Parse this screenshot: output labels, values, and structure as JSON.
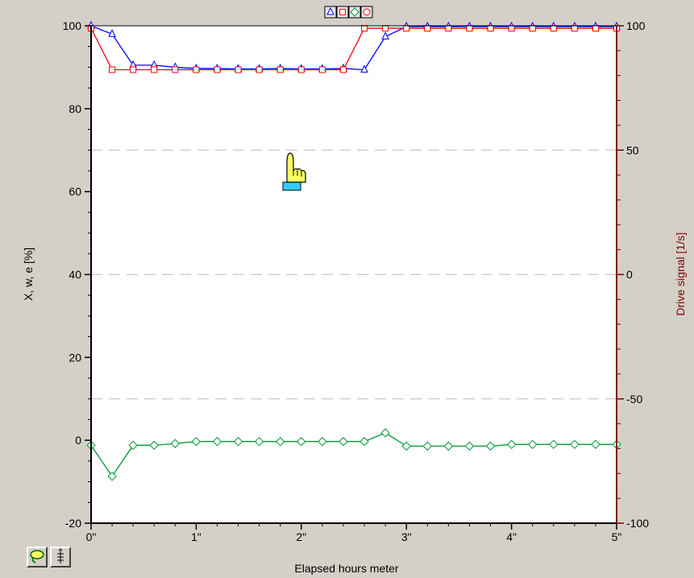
{
  "chart_data": {
    "type": "line",
    "xlabel": "Elapsed hours meter",
    "ylabel": "X, w, e [%]",
    "y2label": "Drive signal [1/s]",
    "xlim": [
      0,
      5
    ],
    "ylim": [
      -20,
      100
    ],
    "y2lim": [
      -100,
      100
    ],
    "x_ticks": [
      0,
      1,
      2,
      3,
      4,
      5
    ],
    "x_tick_labels": [
      "0\"",
      "1\"",
      "2\"",
      "3\"",
      "4\"",
      "5\""
    ],
    "y_ticks": [
      -20,
      0,
      20,
      40,
      60,
      80,
      100
    ],
    "y_tick_labels": [
      "-20",
      "0",
      "20",
      "40",
      "60",
      "80",
      "100"
    ],
    "y2_ticks": [
      -100,
      -50,
      0,
      50,
      100
    ],
    "y2_tick_labels": [
      "-100",
      "-50",
      "0",
      "50",
      "100"
    ],
    "grid": "dashed horizontal at right-axis major ticks",
    "series": [
      {
        "color": "#0000ff",
        "marker": "triangle",
        "axis": "left",
        "x": [
          0,
          0.2,
          0.4,
          0.6,
          0.8,
          1.0,
          1.2,
          1.4,
          1.6,
          1.8,
          2.0,
          2.2,
          2.4,
          2.6,
          2.8,
          3.0,
          3.2,
          3.4,
          3.6,
          3.8,
          4.0,
          4.2,
          4.4,
          4.6,
          4.8,
          5.0
        ],
        "y": [
          100,
          98,
          90.5,
          90.5,
          90,
          89.7,
          89.7,
          89.6,
          89.6,
          89.7,
          89.6,
          89.6,
          89.7,
          89.4,
          97.4,
          99.8,
          99.8,
          99.8,
          99.8,
          99.8,
          99.8,
          99.8,
          99.8,
          99.8,
          99.8,
          99.8
        ]
      },
      {
        "color": "#ff0000",
        "marker": "square",
        "axis": "left",
        "x": [
          0,
          0.2,
          0.4,
          0.6,
          0.8,
          1.0,
          1.2,
          1.4,
          1.6,
          1.8,
          2.0,
          2.2,
          2.4,
          2.6,
          2.8,
          3.0,
          3.2,
          3.4,
          3.6,
          3.8,
          4.0,
          4.2,
          4.4,
          4.6,
          4.8,
          5.0
        ],
        "y": [
          99.4,
          89.4,
          89.4,
          89.4,
          89.4,
          89.4,
          89.4,
          89.4,
          89.4,
          89.4,
          89.4,
          89.4,
          89.4,
          99.4,
          99.4,
          99.4,
          99.4,
          99.4,
          99.4,
          99.4,
          99.4,
          99.4,
          99.4,
          99.4,
          99.4,
          99.4
        ]
      },
      {
        "color": "#009933",
        "marker": "diamond",
        "axis": "left",
        "x": [
          0,
          0.2,
          0.4,
          0.6,
          0.8,
          1.0,
          1.2,
          1.4,
          1.6,
          1.8,
          2.0,
          2.2,
          2.4,
          2.6,
          2.8,
          3.0,
          3.2,
          3.4,
          3.6,
          3.8,
          4.0,
          4.2,
          4.4,
          4.6,
          4.8,
          5.0
        ],
        "y": [
          -1.2,
          -8.7,
          -1.2,
          -1.2,
          -0.8,
          -0.3,
          -0.3,
          -0.3,
          -0.3,
          -0.3,
          -0.3,
          -0.3,
          -0.3,
          -0.3,
          1.8,
          -1.4,
          -1.4,
          -1.4,
          -1.4,
          -1.4,
          -1.0,
          -1.0,
          -1.0,
          -1.0,
          -1.0,
          -1.0
        ]
      }
    ],
    "legend_placement": "top-center",
    "legend_items": [
      {
        "color": "#0000ff",
        "marker": "triangle"
      },
      {
        "color": "#ff0000",
        "marker": "square"
      },
      {
        "color": "#009933",
        "marker": "diamond"
      },
      {
        "color": "#ff0000",
        "marker": "circle"
      }
    ]
  },
  "colors": {
    "left_axis": "#000000",
    "right_axis": "#800000",
    "grid": "#c8c8c8",
    "plot_background": "#ffffff",
    "window_background": "#d4d0c8"
  },
  "cursor": {
    "icon": "hand-pointer-icon"
  },
  "toolbar": {
    "buttons": [
      {
        "icon": "lasso-icon"
      },
      {
        "icon": "cursor-xy-icon"
      }
    ]
  }
}
